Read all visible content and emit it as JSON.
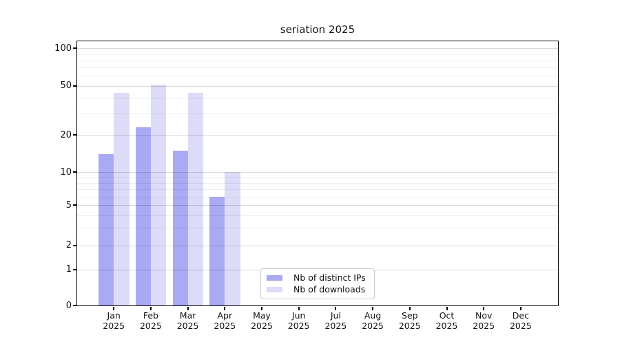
{
  "title": "seriation 2025",
  "legend": {
    "items": [
      {
        "label": "Nb of distinct IPs",
        "color": "#a9a9f4"
      },
      {
        "label": "Nb of downloads",
        "color": "#dcdcf8"
      }
    ]
  },
  "axes": {
    "y_ticks": [
      0,
      1,
      2,
      5,
      10,
      20,
      50,
      100
    ],
    "y_minor_gridlines": [
      3,
      4,
      6,
      7,
      8,
      9,
      30,
      40,
      60,
      70,
      80,
      90
    ],
    "x_tick_line2": "2025"
  },
  "chart_data": {
    "type": "bar",
    "title": "seriation 2025",
    "categories": [
      "Jan 2025",
      "Feb 2025",
      "Mar 2025",
      "Apr 2025",
      "May 2025",
      "Jun 2025",
      "Jul 2025",
      "Aug 2025",
      "Sep 2025",
      "Oct 2025",
      "Nov 2025",
      "Dec 2025"
    ],
    "series": [
      {
        "name": "Nb of distinct IPs",
        "color": "#a9a9f4",
        "values": [
          14,
          23,
          15,
          6,
          null,
          null,
          null,
          null,
          null,
          null,
          null,
          null
        ]
      },
      {
        "name": "Nb of downloads",
        "color": "#dcdcf8",
        "values": [
          44,
          51,
          44,
          10,
          null,
          null,
          null,
          null,
          null,
          null,
          null,
          null
        ]
      }
    ],
    "xlabel": "",
    "ylabel": "",
    "ylim": [
      0,
      100
    ],
    "yscale": "log-like (ticks 0,1,2,5,10,20,50,100)",
    "grid": "horizontal major + minor, drawn over bars",
    "legend_position": "inside bottom-center"
  }
}
